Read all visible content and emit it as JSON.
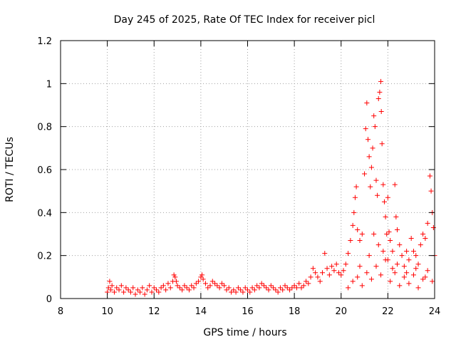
{
  "chart_data": {
    "type": "scatter",
    "title": "Day 245 of 2025, Rate Of TEC Index for receiver picl",
    "xlabel": "GPS time / hours",
    "ylabel": "ROTI / TECUs",
    "xlim": [
      8,
      24
    ],
    "ylim": [
      0,
      1.2
    ],
    "x_ticks": [
      8,
      10,
      12,
      14,
      16,
      18,
      20,
      22,
      24
    ],
    "x_tick_labels": [
      "8",
      "10",
      "12",
      "14",
      "16",
      "18",
      "20",
      "22",
      "24"
    ],
    "y_ticks": [
      0,
      0.2,
      0.4,
      0.6,
      0.8,
      1.0,
      1.2
    ],
    "y_tick_labels": [
      "0",
      "0.2",
      "0.4",
      "0.6",
      "0.8",
      "1",
      "1.2"
    ],
    "grid": true,
    "marker": "+",
    "marker_color": "#ff0000",
    "series": [
      {
        "name": "ROTI",
        "points": [
          [
            10.0,
            0.03
          ],
          [
            10.05,
            0.05
          ],
          [
            10.1,
            0.08
          ],
          [
            10.15,
            0.04
          ],
          [
            10.2,
            0.06
          ],
          [
            10.3,
            0.03
          ],
          [
            10.4,
            0.05
          ],
          [
            10.5,
            0.04
          ],
          [
            10.6,
            0.06
          ],
          [
            10.7,
            0.03
          ],
          [
            10.8,
            0.05
          ],
          [
            10.9,
            0.04
          ],
          [
            11.0,
            0.03
          ],
          [
            11.1,
            0.05
          ],
          [
            11.2,
            0.02
          ],
          [
            11.3,
            0.04
          ],
          [
            11.4,
            0.03
          ],
          [
            11.5,
            0.05
          ],
          [
            11.6,
            0.02
          ],
          [
            11.7,
            0.04
          ],
          [
            11.8,
            0.06
          ],
          [
            11.9,
            0.03
          ],
          [
            12.0,
            0.05
          ],
          [
            12.1,
            0.04
          ],
          [
            12.2,
            0.03
          ],
          [
            12.3,
            0.05
          ],
          [
            12.4,
            0.06
          ],
          [
            12.5,
            0.04
          ],
          [
            12.6,
            0.07
          ],
          [
            12.7,
            0.05
          ],
          [
            12.8,
            0.08
          ],
          [
            12.85,
            0.11
          ],
          [
            12.9,
            0.1
          ],
          [
            12.95,
            0.08
          ],
          [
            13.0,
            0.06
          ],
          [
            13.1,
            0.05
          ],
          [
            13.2,
            0.04
          ],
          [
            13.3,
            0.06
          ],
          [
            13.4,
            0.05
          ],
          [
            13.5,
            0.04
          ],
          [
            13.6,
            0.06
          ],
          [
            13.7,
            0.05
          ],
          [
            13.8,
            0.07
          ],
          [
            13.9,
            0.08
          ],
          [
            14.0,
            0.1
          ],
          [
            14.05,
            0.11
          ],
          [
            14.1,
            0.09
          ],
          [
            14.2,
            0.07
          ],
          [
            14.3,
            0.05
          ],
          [
            14.4,
            0.06
          ],
          [
            14.5,
            0.08
          ],
          [
            14.6,
            0.07
          ],
          [
            14.7,
            0.06
          ],
          [
            14.8,
            0.05
          ],
          [
            14.9,
            0.07
          ],
          [
            15.0,
            0.06
          ],
          [
            15.1,
            0.04
          ],
          [
            15.2,
            0.05
          ],
          [
            15.3,
            0.03
          ],
          [
            15.4,
            0.04
          ],
          [
            15.5,
            0.03
          ],
          [
            15.6,
            0.05
          ],
          [
            15.7,
            0.04
          ],
          [
            15.8,
            0.03
          ],
          [
            15.9,
            0.05
          ],
          [
            16.0,
            0.04
          ],
          [
            16.1,
            0.03
          ],
          [
            16.2,
            0.05
          ],
          [
            16.3,
            0.04
          ],
          [
            16.4,
            0.06
          ],
          [
            16.5,
            0.05
          ],
          [
            16.6,
            0.07
          ],
          [
            16.7,
            0.06
          ],
          [
            16.8,
            0.05
          ],
          [
            16.9,
            0.04
          ],
          [
            17.0,
            0.06
          ],
          [
            17.1,
            0.05
          ],
          [
            17.2,
            0.04
          ],
          [
            17.3,
            0.03
          ],
          [
            17.4,
            0.05
          ],
          [
            17.5,
            0.04
          ],
          [
            17.6,
            0.06
          ],
          [
            17.7,
            0.05
          ],
          [
            17.8,
            0.04
          ],
          [
            17.9,
            0.05
          ],
          [
            18.0,
            0.06
          ],
          [
            18.1,
            0.05
          ],
          [
            18.2,
            0.07
          ],
          [
            18.3,
            0.05
          ],
          [
            18.4,
            0.06
          ],
          [
            18.5,
            0.08
          ],
          [
            18.6,
            0.07
          ],
          [
            18.7,
            0.1
          ],
          [
            18.8,
            0.14
          ],
          [
            18.9,
            0.12
          ],
          [
            19.0,
            0.1
          ],
          [
            19.1,
            0.08
          ],
          [
            19.2,
            0.12
          ],
          [
            19.3,
            0.21
          ],
          [
            19.4,
            0.14
          ],
          [
            19.5,
            0.11
          ],
          [
            19.6,
            0.15
          ],
          [
            19.7,
            0.13
          ],
          [
            19.8,
            0.16
          ],
          [
            19.9,
            0.12
          ],
          [
            20.0,
            0.11
          ],
          [
            20.1,
            0.13
          ],
          [
            20.2,
            0.16
          ],
          [
            20.3,
            0.21
          ],
          [
            20.4,
            0.27
          ],
          [
            20.5,
            0.34
          ],
          [
            20.55,
            0.4
          ],
          [
            20.6,
            0.47
          ],
          [
            20.65,
            0.52
          ],
          [
            20.7,
            0.32
          ],
          [
            20.8,
            0.27
          ],
          [
            20.9,
            0.3
          ],
          [
            21.0,
            0.58
          ],
          [
            21.05,
            0.79
          ],
          [
            21.1,
            0.91
          ],
          [
            21.15,
            0.74
          ],
          [
            21.2,
            0.66
          ],
          [
            21.25,
            0.52
          ],
          [
            21.3,
            0.61
          ],
          [
            21.35,
            0.7
          ],
          [
            21.4,
            0.85
          ],
          [
            21.45,
            0.8
          ],
          [
            21.5,
            0.55
          ],
          [
            21.55,
            0.48
          ],
          [
            21.6,
            0.93
          ],
          [
            21.65,
            0.96
          ],
          [
            21.7,
            1.01
          ],
          [
            21.72,
            0.87
          ],
          [
            21.75,
            0.72
          ],
          [
            21.8,
            0.53
          ],
          [
            21.85,
            0.45
          ],
          [
            21.9,
            0.38
          ],
          [
            21.95,
            0.3
          ],
          [
            22.0,
            0.47
          ],
          [
            22.05,
            0.31
          ],
          [
            22.1,
            0.27
          ],
          [
            22.2,
            0.22
          ],
          [
            22.3,
            0.53
          ],
          [
            22.35,
            0.38
          ],
          [
            22.4,
            0.32
          ],
          [
            22.5,
            0.25
          ],
          [
            22.6,
            0.2
          ],
          [
            22.7,
            0.15
          ],
          [
            22.8,
            0.22
          ],
          [
            22.9,
            0.18
          ],
          [
            23.0,
            0.28
          ],
          [
            23.1,
            0.22
          ],
          [
            23.2,
            0.2
          ],
          [
            23.3,
            0.16
          ],
          [
            23.4,
            0.25
          ],
          [
            23.5,
            0.3
          ],
          [
            23.6,
            0.28
          ],
          [
            23.7,
            0.35
          ],
          [
            23.8,
            0.57
          ],
          [
            23.85,
            0.5
          ],
          [
            23.9,
            0.4
          ],
          [
            23.95,
            0.33
          ],
          [
            24.0,
            0.2
          ],
          [
            20.3,
            0.05
          ],
          [
            20.5,
            0.08
          ],
          [
            20.7,
            0.1
          ],
          [
            20.9,
            0.06
          ],
          [
            21.1,
            0.12
          ],
          [
            21.3,
            0.09
          ],
          [
            21.5,
            0.15
          ],
          [
            21.7,
            0.11
          ],
          [
            21.9,
            0.18
          ],
          [
            22.1,
            0.08
          ],
          [
            22.3,
            0.12
          ],
          [
            22.5,
            0.06
          ],
          [
            22.7,
            0.1
          ],
          [
            22.9,
            0.07
          ],
          [
            23.1,
            0.11
          ],
          [
            23.3,
            0.05
          ],
          [
            23.5,
            0.09
          ],
          [
            23.7,
            0.13
          ],
          [
            23.9,
            0.08
          ],
          [
            21.2,
            0.2
          ],
          [
            21.6,
            0.25
          ],
          [
            22.0,
            0.18
          ],
          [
            22.4,
            0.16
          ],
          [
            22.8,
            0.12
          ],
          [
            23.2,
            0.14
          ],
          [
            23.6,
            0.1
          ],
          [
            20.8,
            0.15
          ],
          [
            21.4,
            0.3
          ],
          [
            21.8,
            0.22
          ],
          [
            22.2,
            0.14
          ]
        ]
      }
    ]
  }
}
